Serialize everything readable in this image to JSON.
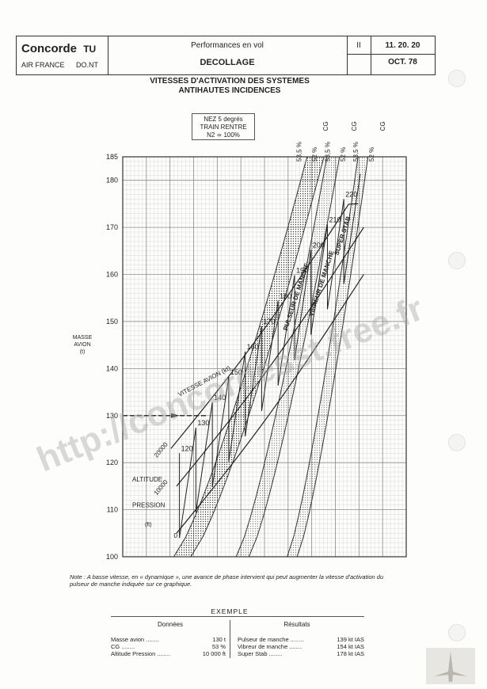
{
  "header": {
    "brand": "Concorde",
    "brand_suffix": "TU",
    "airline": "AIR FRANCE",
    "department": "DO.NT",
    "section": "Performances en vol",
    "chapter_title": "DECOLLAGE",
    "volume": "II",
    "page_ref": "11. 20. 20",
    "date": "OCT. 78"
  },
  "title_line1": "VITESSES D'ACTIVATION DES SYSTEMES",
  "title_line2": "ANTIHAUTES INCIDENCES",
  "conditions": [
    "NEZ 5 degrés",
    "TRAIN RENTRE",
    "N2 ≃ 100%"
  ],
  "note": "Note : A basse vitesse, en « dynamique », une avance de phase intervient qui peut augmenter la vitesse d'activation du pulseur de manche indiquée sur ce graphique.",
  "example": {
    "title": "EXEMPLE",
    "donnees_title": "Données",
    "resultats_title": "Résultats",
    "donnees": [
      {
        "label": "Masse avion",
        "value": "130 t"
      },
      {
        "label": "CG",
        "value": "53 %"
      },
      {
        "label": "Altitude Pression",
        "value": "10 000 ft"
      }
    ],
    "resultats": [
      {
        "label": "Pulseur de manche",
        "value": "139 kt IAS"
      },
      {
        "label": "Vibreur de manche",
        "value": "154 kt IAS"
      },
      {
        "label": "Super Stab",
        "value": "178 kt IAS"
      }
    ]
  },
  "watermark": "http://concordesst.free.fr",
  "chart_data": {
    "type": "line",
    "ylabel": "MASSE AVION (t)",
    "ylim": [
      100,
      185
    ],
    "yticks": [
      100,
      110,
      120,
      130,
      140,
      150,
      160,
      170,
      180,
      185
    ],
    "grid": true,
    "altitude_label": "ALTITUDE PRESSION (ft)",
    "altitude_values": [
      0,
      10000,
      20000
    ],
    "speed_label": "VITESSE AVION (kt)",
    "speed_labels": [
      120,
      130,
      140,
      150,
      160,
      170,
      180,
      190,
      200,
      210,
      220
    ],
    "systems": [
      {
        "name": "PULSEUR DE MANCHE",
        "cg": [
          "53,5",
          "52"
        ],
        "unit": "CG %"
      },
      {
        "name": "VIBREUR DE MANCHE",
        "cg": [
          "53,5",
          "52"
        ],
        "unit": "CG %"
      },
      {
        "name": "SUPER STAB",
        "cg": [
          "53,5",
          "52"
        ],
        "unit": "CG %"
      }
    ],
    "example_mass": 130
  }
}
